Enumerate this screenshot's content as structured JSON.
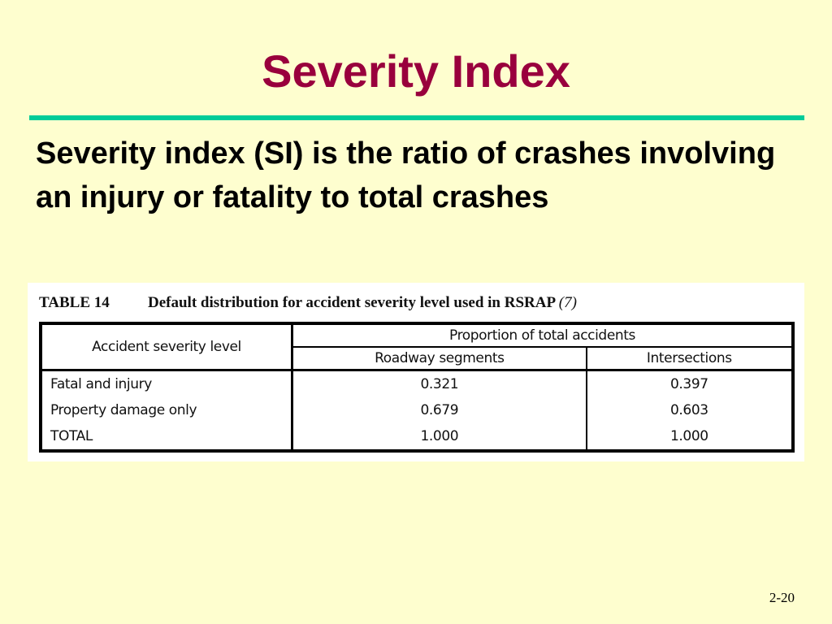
{
  "slide": {
    "title": "Severity Index",
    "body": "Severity index (SI) is the ratio of crashes involving an injury or fatality to total crashes",
    "number": "2-20"
  },
  "colors": {
    "background": "#fefecf",
    "title": "#99003d",
    "rule": "#00cc99"
  },
  "table": {
    "caption_number": "TABLE 14",
    "caption_text": "Default distribution for accident severity level used in RSRAP",
    "caption_ref": "(7)",
    "header_level": "Accident severity level",
    "header_group": "Proportion of total accidents",
    "header_roadway": "Roadway segments",
    "header_intersections": "Intersections",
    "rows": [
      {
        "level": "Fatal and injury",
        "roadway": "0.321",
        "intersections": "0.397"
      },
      {
        "level": "Property damage only",
        "roadway": "0.679",
        "intersections": "0.603"
      },
      {
        "level": "TOTAL",
        "roadway": "1.000",
        "intersections": "1.000"
      }
    ]
  }
}
